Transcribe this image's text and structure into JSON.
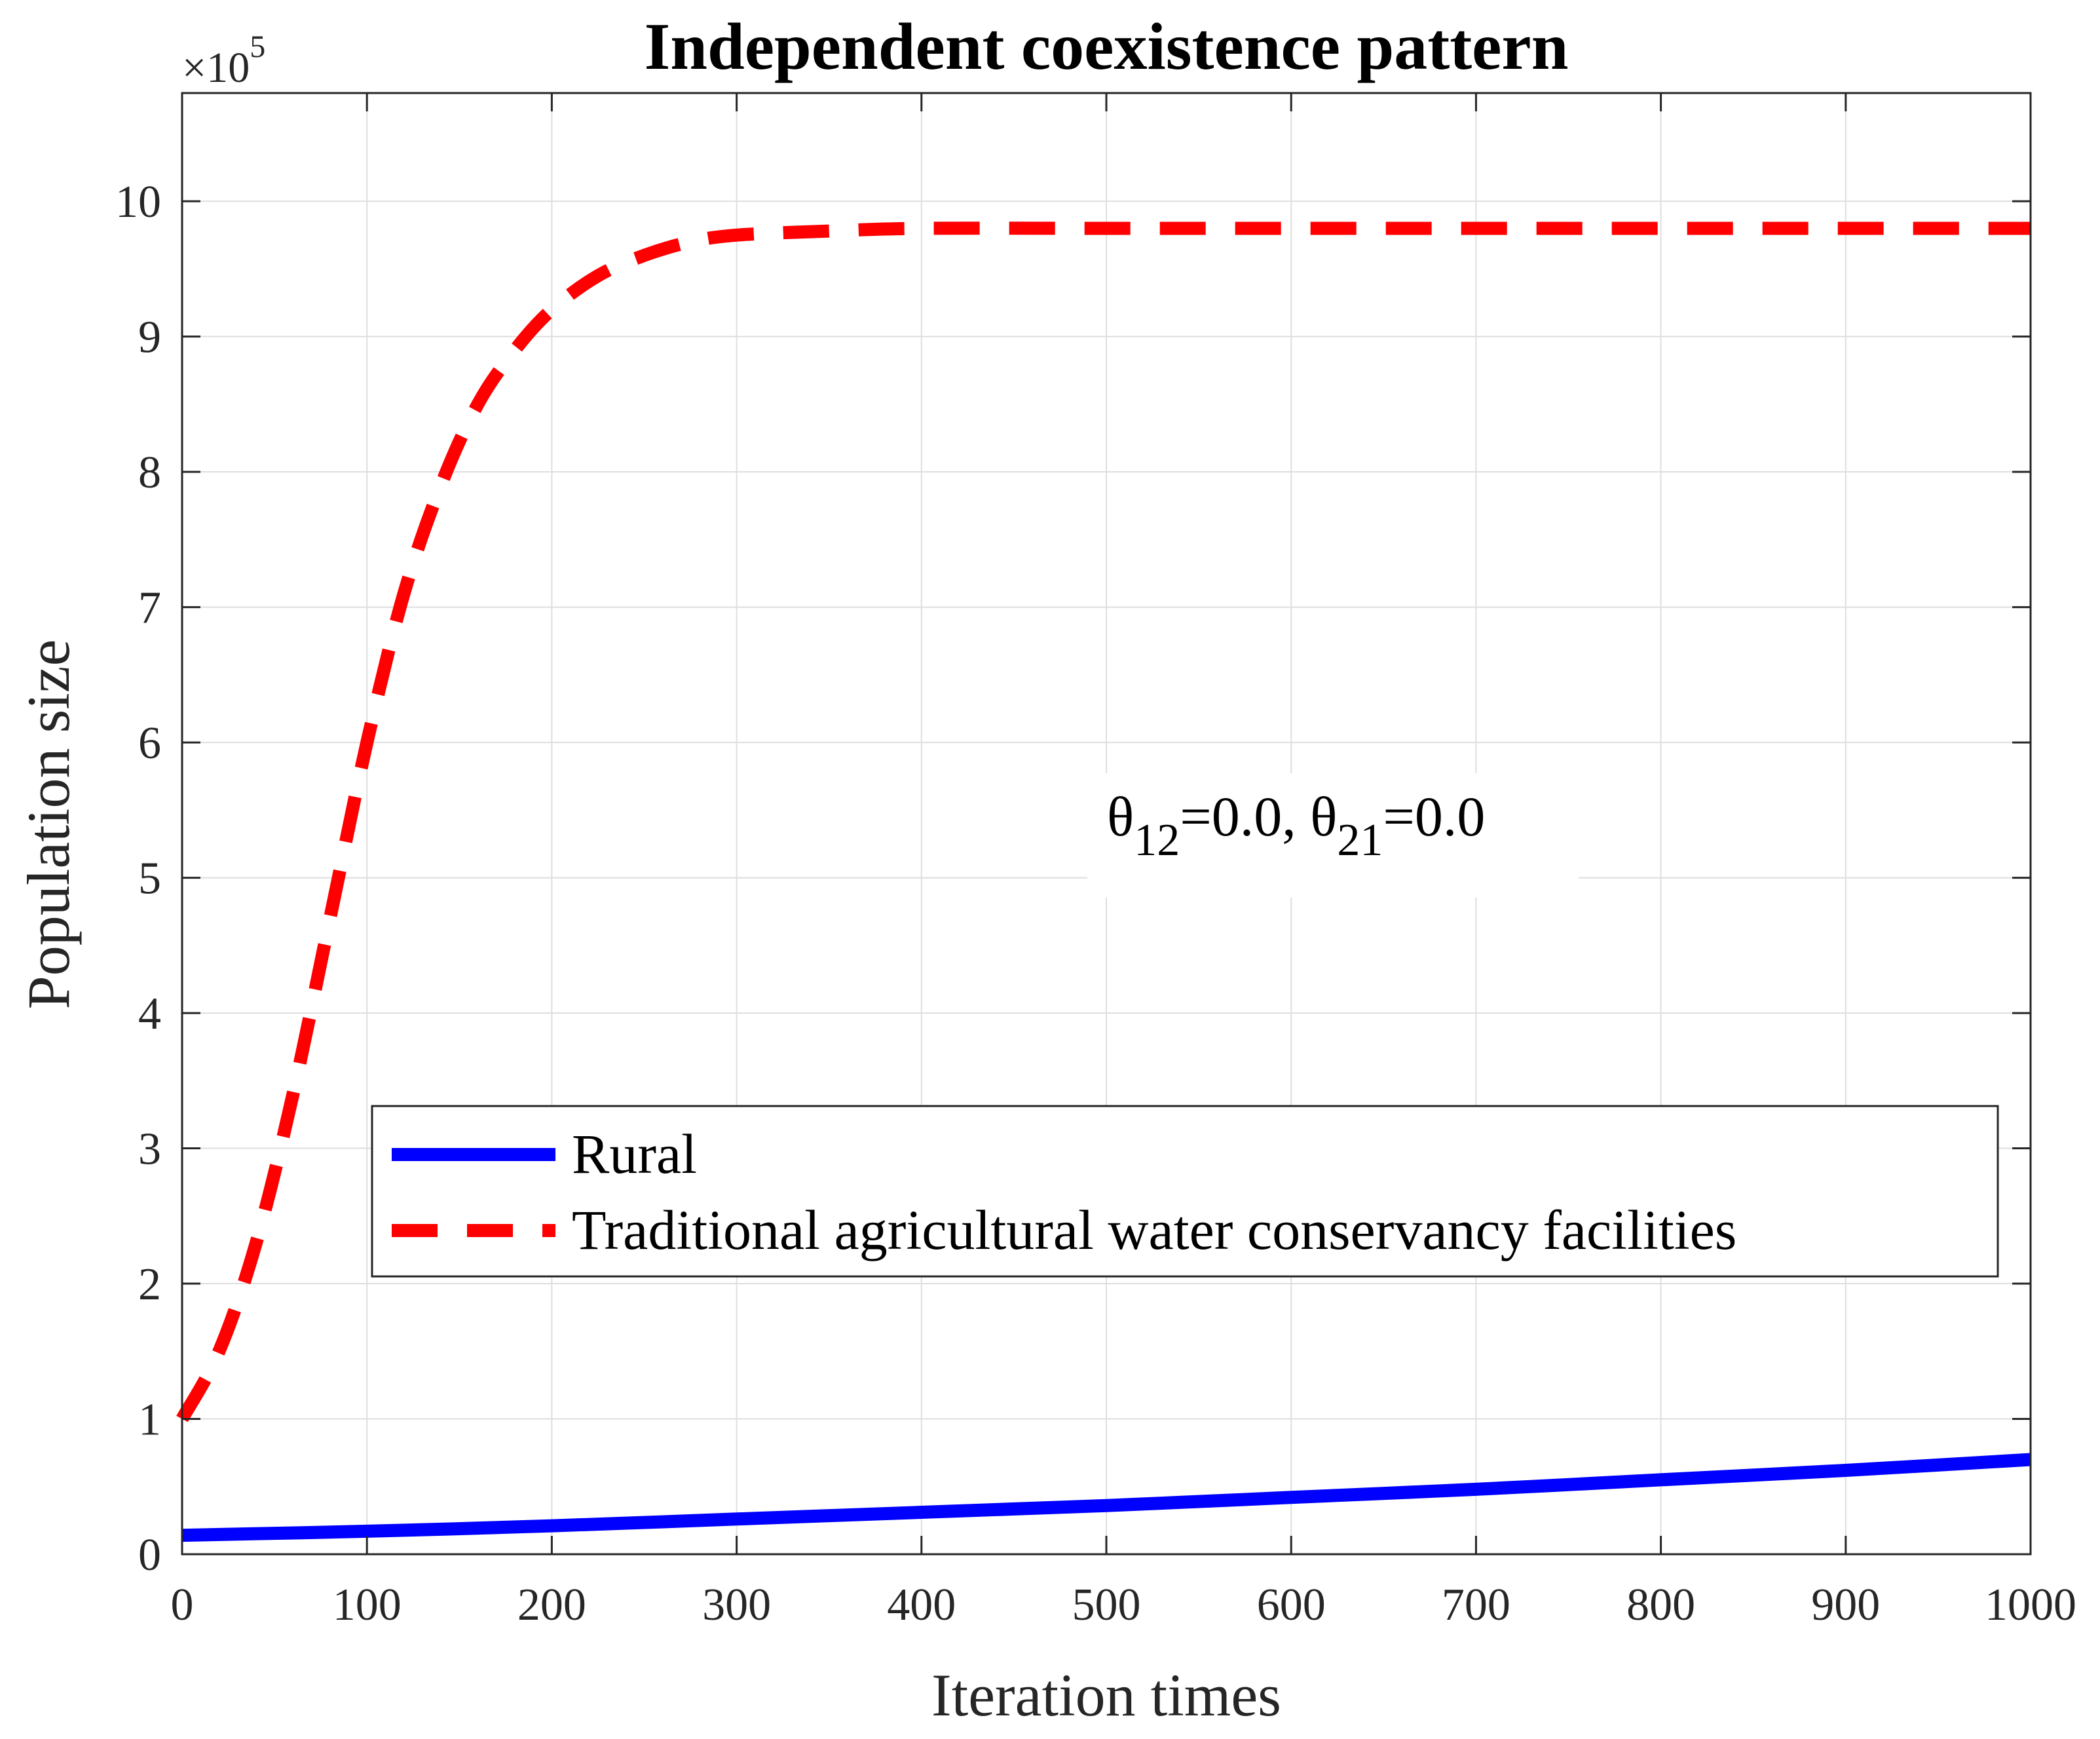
{
  "chart_data": {
    "type": "line",
    "title": "Independent coexistence pattern",
    "xlabel": "Iteration times",
    "ylabel": "Population size",
    "y_exponent_prefix": "×10",
    "y_exponent_power": "5",
    "xlim": [
      0,
      1000
    ],
    "ylim": [
      0,
      10.8
    ],
    "x_ticks": [
      0,
      100,
      200,
      300,
      400,
      500,
      600,
      700,
      800,
      900,
      1000
    ],
    "x_tick_labels": [
      "0",
      "100",
      "200",
      "300",
      "400",
      "500",
      "600",
      "700",
      "800",
      "900",
      "1000"
    ],
    "y_ticks": [
      0,
      1,
      2,
      3,
      4,
      5,
      6,
      7,
      8,
      9,
      10
    ],
    "y_tick_labels": [
      "0",
      "1",
      "2",
      "3",
      "4",
      "5",
      "6",
      "7",
      "8",
      "9",
      "10"
    ],
    "grid": true,
    "legend_position": "lower-right",
    "annotation": {
      "theta": "θ",
      "sub1": "12",
      "mid": "=0.0, ",
      "sub2": "21",
      "end": "=0.0"
    },
    "series": [
      {
        "name": "Rural",
        "color": "#0000ff",
        "style": "solid",
        "x": [
          0,
          100,
          200,
          300,
          400,
          500,
          600,
          700,
          800,
          900,
          1000
        ],
        "values": [
          0.14,
          0.17,
          0.21,
          0.26,
          0.31,
          0.36,
          0.42,
          0.48,
          0.55,
          0.62,
          0.7
        ]
      },
      {
        "name": "Traditional agricultural water conservancy facilities",
        "color": "#ff0000",
        "style": "dashed",
        "x": [
          0,
          20,
          40,
          60,
          80,
          100,
          120,
          140,
          160,
          180,
          200,
          225,
          250,
          275,
          300,
          350,
          400,
          500,
          600,
          700,
          800,
          900,
          1000
        ],
        "values": [
          1.0,
          1.5,
          2.3,
          3.4,
          4.7,
          6.0,
          7.1,
          7.9,
          8.5,
          8.9,
          9.2,
          9.45,
          9.6,
          9.7,
          9.75,
          9.78,
          9.8,
          9.8,
          9.8,
          9.8,
          9.8,
          9.8,
          9.8
        ]
      }
    ]
  }
}
